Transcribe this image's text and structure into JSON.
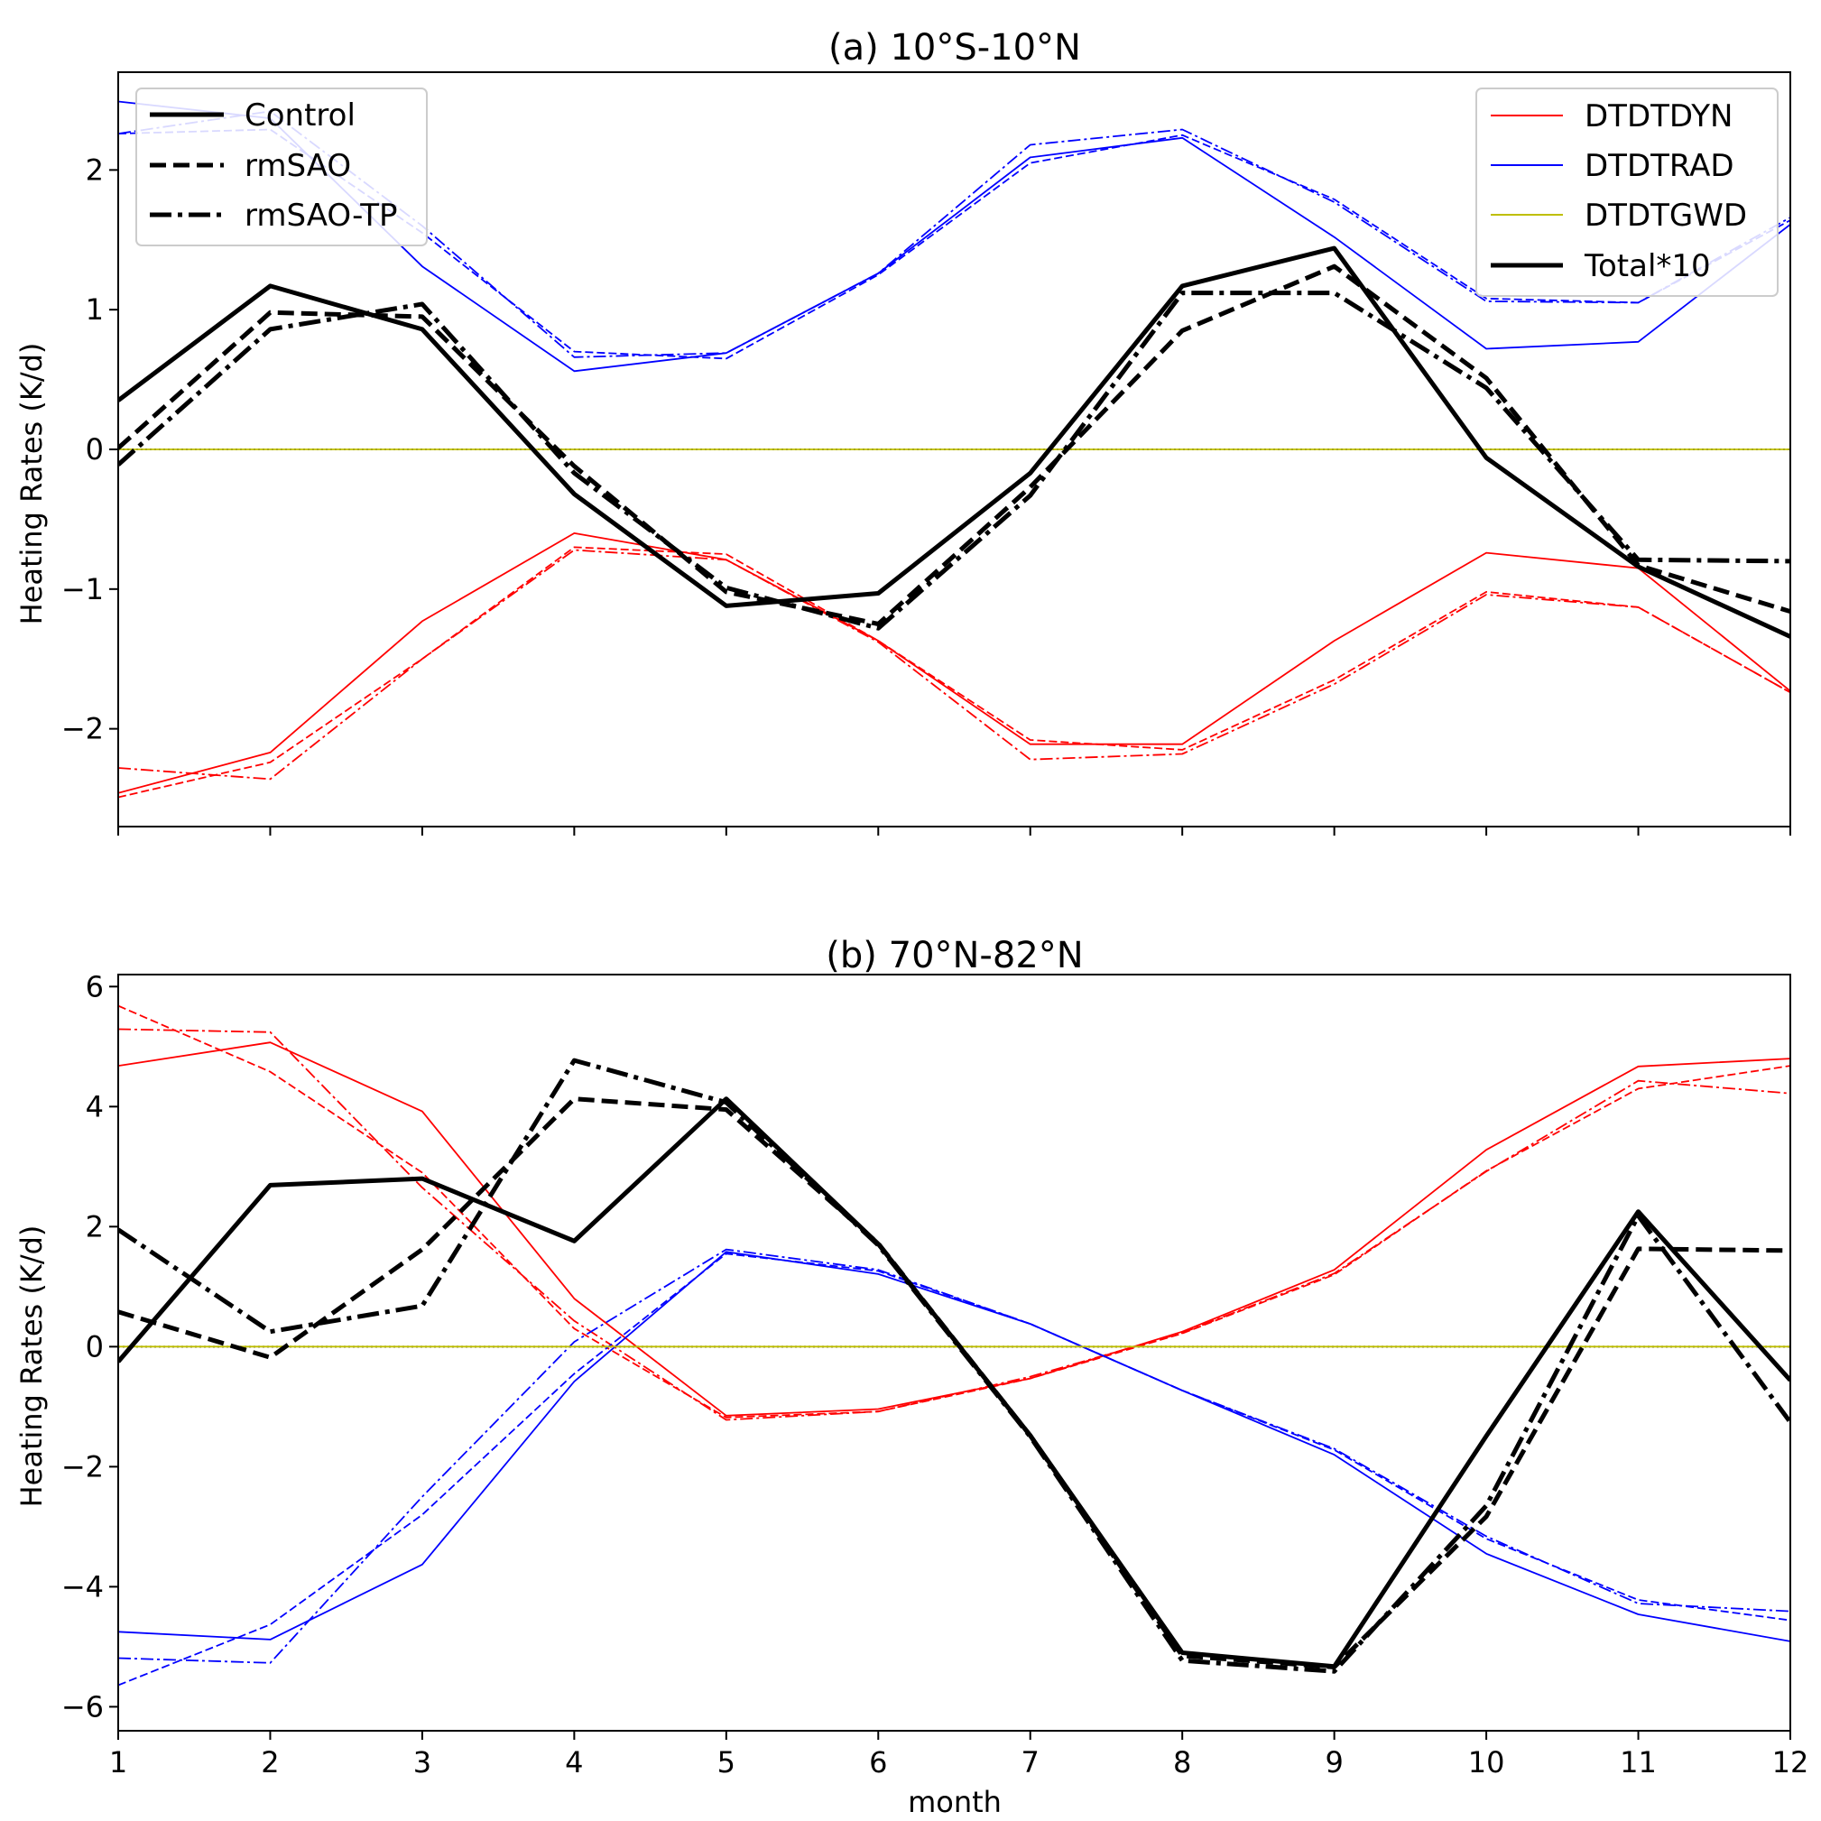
{
  "chart_data": [
    {
      "id": "a",
      "type": "line",
      "title": "(a) 10°S-10°N",
      "xlabel": "",
      "ylabel": "Heating Rates (K/d)",
      "xlim": [
        1,
        12
      ],
      "ylim": [
        -2.7,
        2.7
      ],
      "xticks": [
        1,
        2,
        3,
        4,
        5,
        6,
        7,
        8,
        9,
        10,
        11,
        12
      ],
      "xtick_labels_visible": false,
      "yticks": [
        -2,
        -1,
        0,
        1,
        2
      ],
      "ytick_labels": [
        "−2",
        "−1",
        "0",
        "1",
        "2"
      ],
      "x": [
        1,
        2,
        3,
        4,
        5,
        6,
        7,
        8,
        9,
        10,
        11,
        12
      ],
      "series": [
        {
          "name": "DTDTRAD Control",
          "variable": "DTDTRAD",
          "experiment": "Control",
          "values": [
            2.49,
            2.37,
            1.31,
            0.56,
            0.69,
            1.26,
            2.09,
            2.23,
            1.52,
            0.72,
            0.77,
            1.61
          ]
        },
        {
          "name": "DTDTRAD rmSAO",
          "variable": "DTDTRAD",
          "experiment": "rmSAO",
          "values": [
            2.26,
            2.29,
            1.55,
            0.7,
            0.65,
            1.25,
            2.05,
            2.25,
            1.79,
            1.08,
            1.05,
            1.64
          ]
        },
        {
          "name": "DTDTRAD rmSAO-TP",
          "variable": "DTDTRAD",
          "experiment": "rmSAO-TP",
          "values": [
            2.26,
            2.42,
            1.6,
            0.66,
            0.69,
            1.26,
            2.18,
            2.29,
            1.77,
            1.06,
            1.05,
            1.66
          ]
        },
        {
          "name": "DTDTDYN Control",
          "variable": "DTDTDYN",
          "experiment": "Control",
          "values": [
            -2.46,
            -2.17,
            -1.23,
            -0.6,
            -0.79,
            -1.37,
            -2.11,
            -2.11,
            -1.37,
            -0.74,
            -0.85,
            -1.73
          ]
        },
        {
          "name": "DTDTDYN rmSAO",
          "variable": "DTDTDYN",
          "experiment": "rmSAO",
          "values": [
            -2.49,
            -2.24,
            -1.5,
            -0.7,
            -0.75,
            -1.37,
            -2.08,
            -2.15,
            -1.65,
            -1.02,
            -1.13,
            -1.74
          ]
        },
        {
          "name": "DTDTDYN rmSAO-TP",
          "variable": "DTDTDYN",
          "experiment": "rmSAO-TP",
          "values": [
            -2.28,
            -2.36,
            -1.5,
            -0.72,
            -0.79,
            -1.38,
            -2.22,
            -2.18,
            -1.68,
            -1.04,
            -1.13,
            -1.74
          ]
        },
        {
          "name": "DTDTGWD Control",
          "variable": "DTDTGWD",
          "experiment": "Control",
          "values": [
            0,
            0,
            0,
            0,
            0,
            0,
            0,
            0,
            0,
            0,
            0,
            0
          ]
        },
        {
          "name": "Total*10 Control",
          "variable": "Total*10",
          "experiment": "Control",
          "values": [
            0.35,
            1.17,
            0.86,
            -0.32,
            -1.12,
            -1.03,
            -0.17,
            1.17,
            1.44,
            -0.06,
            -0.84,
            -1.34
          ]
        },
        {
          "name": "Total*10 rmSAO",
          "variable": "Total*10",
          "experiment": "rmSAO",
          "values": [
            0.01,
            0.98,
            0.95,
            -0.12,
            -1.02,
            -1.25,
            -0.27,
            0.85,
            1.31,
            0.51,
            -0.83,
            -1.16
          ]
        },
        {
          "name": "Total*10 rmSAO-TP",
          "variable": "Total*10",
          "experiment": "rmSAO-TP",
          "values": [
            -0.11,
            0.86,
            1.04,
            -0.17,
            -0.99,
            -1.28,
            -0.33,
            1.12,
            1.12,
            0.44,
            -0.79,
            -0.8
          ]
        }
      ],
      "zero_line": {
        "value": 0,
        "color": "#000000",
        "style": "dotted"
      }
    },
    {
      "id": "b",
      "type": "line",
      "title": "(b) 70°N-82°N",
      "xlabel": "month",
      "ylabel": "Heating Rates (K/d)",
      "xlim": [
        1,
        12
      ],
      "ylim": [
        -6.4,
        6.2
      ],
      "xticks": [
        1,
        2,
        3,
        4,
        5,
        6,
        7,
        8,
        9,
        10,
        11,
        12
      ],
      "xtick_labels_visible": true,
      "yticks": [
        -6,
        -4,
        -2,
        0,
        2,
        4,
        6
      ],
      "ytick_labels": [
        "−6",
        "−4",
        "−2",
        "0",
        "2",
        "4",
        "6"
      ],
      "x": [
        1,
        2,
        3,
        4,
        5,
        6,
        7,
        8,
        9,
        10,
        11,
        12
      ],
      "series": [
        {
          "name": "DTDTDYN Control",
          "variable": "DTDTDYN",
          "experiment": "Control",
          "values": [
            4.68,
            5.07,
            3.92,
            0.8,
            -1.15,
            -1.04,
            -0.53,
            0.25,
            1.28,
            3.28,
            4.67,
            4.8
          ]
        },
        {
          "name": "DTDTDYN rmSAO",
          "variable": "DTDTDYN",
          "experiment": "rmSAO",
          "values": [
            5.68,
            4.58,
            2.9,
            0.3,
            -1.18,
            -1.08,
            -0.53,
            0.22,
            1.2,
            2.93,
            4.3,
            4.68
          ]
        },
        {
          "name": "DTDTDYN rmSAO-TP",
          "variable": "DTDTDYN",
          "experiment": "rmSAO-TP",
          "values": [
            5.29,
            5.24,
            2.65,
            0.43,
            -1.22,
            -1.08,
            -0.5,
            0.23,
            1.22,
            2.92,
            4.43,
            4.22
          ]
        },
        {
          "name": "DTDTRAD Control",
          "variable": "DTDTRAD",
          "experiment": "Control",
          "values": [
            -4.75,
            -4.88,
            -3.63,
            -0.58,
            1.58,
            1.21,
            0.38,
            -0.73,
            -1.8,
            -3.45,
            -4.46,
            -4.91
          ]
        },
        {
          "name": "DTDTRAD rmSAO",
          "variable": "DTDTRAD",
          "experiment": "rmSAO",
          "values": [
            -5.64,
            -4.63,
            -2.8,
            -0.45,
            1.55,
            1.26,
            0.38,
            -0.73,
            -1.72,
            -3.2,
            -4.22,
            -4.56
          ]
        },
        {
          "name": "DTDTRAD rmSAO-TP",
          "variable": "DTDTRAD",
          "experiment": "rmSAO-TP",
          "values": [
            -5.19,
            -5.27,
            -2.5,
            0.08,
            1.62,
            1.28,
            0.38,
            -0.73,
            -1.7,
            -3.16,
            -4.28,
            -4.41
          ]
        },
        {
          "name": "DTDTGWD Control",
          "variable": "DTDTGWD",
          "experiment": "Control",
          "values": [
            0,
            0,
            0,
            0,
            0,
            0,
            0,
            0,
            0,
            0,
            0,
            0
          ]
        },
        {
          "name": "Total*10 Control",
          "variable": "Total*10",
          "experiment": "Control",
          "values": [
            -0.25,
            2.69,
            2.8,
            1.76,
            4.13,
            1.71,
            -1.48,
            -5.1,
            -5.33,
            -1.49,
            2.25,
            -0.56
          ]
        },
        {
          "name": "Total*10 rmSAO",
          "variable": "Total*10",
          "experiment": "rmSAO",
          "values": [
            0.58,
            -0.18,
            1.62,
            4.13,
            3.95,
            1.72,
            -1.48,
            -5.15,
            -5.34,
            -2.83,
            1.63,
            1.6
          ]
        },
        {
          "name": "Total*10 rmSAO-TP",
          "variable": "Total*10",
          "experiment": "rmSAO-TP",
          "values": [
            1.95,
            0.25,
            0.68,
            4.77,
            4.07,
            1.69,
            -1.5,
            -5.23,
            -5.41,
            -2.65,
            2.18,
            -1.26
          ]
        }
      ],
      "zero_line": {
        "value": 0,
        "color": "#000000",
        "style": "dotted"
      }
    }
  ],
  "legends": {
    "experiments": {
      "location": "upper-left",
      "entries": [
        {
          "label": "Control",
          "style": "solid"
        },
        {
          "label": "rmSAO",
          "style": "dashed"
        },
        {
          "label": "rmSAO-TP",
          "style": "dashdot"
        }
      ]
    },
    "variables": {
      "location": "upper-right",
      "entries": [
        {
          "label": "DTDTDYN",
          "color": "#ff0000",
          "thick": false
        },
        {
          "label": "DTDTRAD",
          "color": "#0000ff",
          "thick": false
        },
        {
          "label": "DTDTGWD",
          "color": "#bfbf00",
          "thick": false
        },
        {
          "label": "Total*10",
          "color": "#000000",
          "thick": true
        }
      ]
    }
  },
  "colors": {
    "DTDTDYN": "#ff0000",
    "DTDTRAD": "#0000ff",
    "DTDTGWD": "#bfbf00",
    "Total*10": "#000000"
  }
}
